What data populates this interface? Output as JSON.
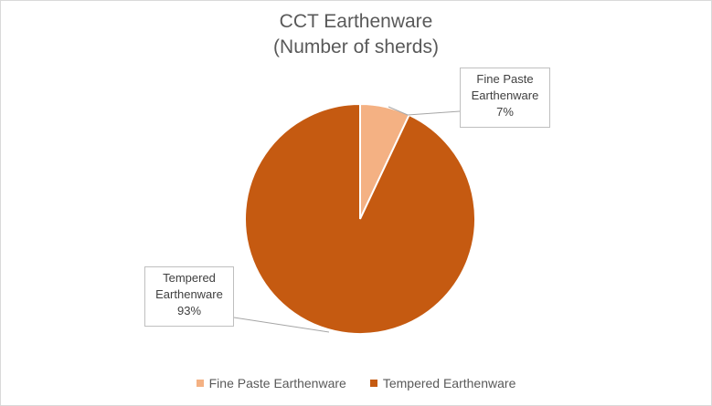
{
  "chart_data": {
    "type": "pie",
    "title": [
      "CCT Earthenware",
      "(Number of sherds)"
    ],
    "categories": [
      "Fine Paste Earthenware",
      "Tempered Earthenware"
    ],
    "values": [
      7,
      93
    ],
    "unit": "%",
    "data_labels": [
      {
        "lines": [
          "Fine Paste",
          "Earthenware",
          "7%"
        ]
      },
      {
        "lines": [
          "Tempered",
          "Earthenware",
          "93%"
        ]
      }
    ],
    "colors": [
      "#f4b183",
      "#c55a11"
    ],
    "legend_position": "bottom"
  }
}
